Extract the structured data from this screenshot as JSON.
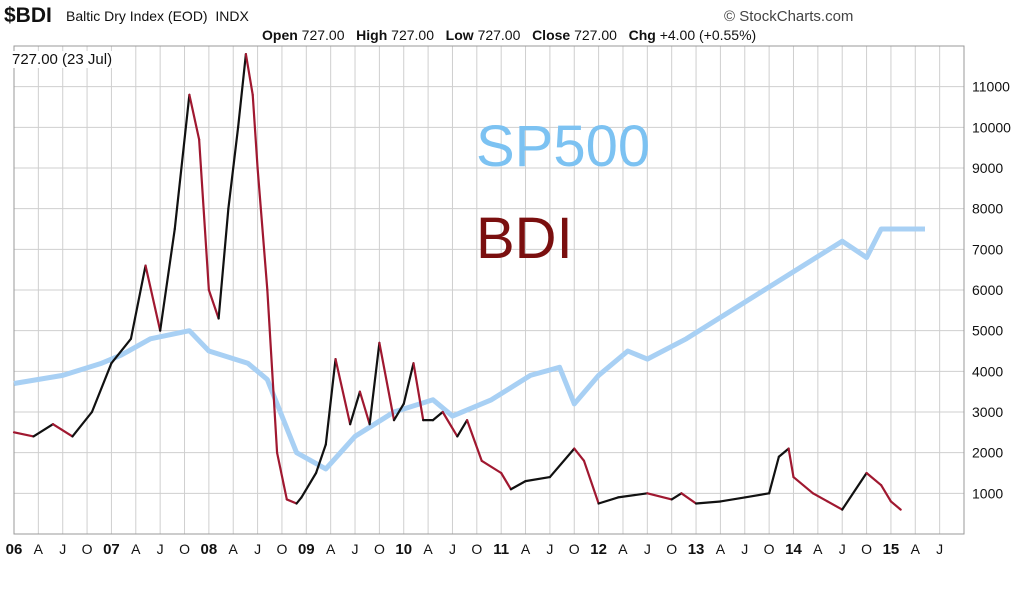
{
  "header": {
    "symbol": "$BDI",
    "name": "Baltic Dry Index (EOD)",
    "exchange": "INDX",
    "brand": "© StockCharts.com",
    "open_label": "Open",
    "open": "727.00",
    "high_label": "High",
    "high": "727.00",
    "low_label": "Low",
    "low": "727.00",
    "close_label": "Close",
    "close": "727.00",
    "chg_label": "Chg",
    "chg": "+4.00 (+0.55%)"
  },
  "last_value": "727.00 (23 Jul)",
  "annotations": {
    "sp500": "SP500",
    "bdi": "BDI"
  },
  "colors": {
    "bdi_up": "#111111",
    "bdi_down": "#a01830",
    "sp500": "#a8d0f4",
    "sp500_text": "#7cc2f2",
    "bdi_text": "#7a0f0f",
    "grid": "#cfcfcf"
  },
  "chart_data": {
    "type": "line",
    "x_tick_labels": [
      "06",
      "A",
      "J",
      "O",
      "07",
      "A",
      "J",
      "O",
      "08",
      "A",
      "J",
      "O",
      "09",
      "A",
      "J",
      "O",
      "10",
      "A",
      "J",
      "O",
      "11",
      "A",
      "J",
      "O",
      "12",
      "A",
      "J",
      "O",
      "13",
      "A",
      "J",
      "O",
      "14",
      "A",
      "J",
      "O",
      "15",
      "A",
      "J"
    ],
    "ylim": [
      0,
      12000
    ],
    "y_ticks": [
      1000,
      2000,
      3000,
      4000,
      5000,
      6000,
      7000,
      8000,
      9000,
      10000,
      11000
    ],
    "grid": true,
    "series": [
      {
        "name": "BDI",
        "x": [
          2006.0,
          2006.2,
          2006.4,
          2006.6,
          2006.8,
          2007.0,
          2007.2,
          2007.35,
          2007.5,
          2007.65,
          2007.8,
          2007.9,
          2008.0,
          2008.1,
          2008.2,
          2008.3,
          2008.38,
          2008.45,
          2008.5,
          2008.6,
          2008.7,
          2008.8,
          2008.9,
          2008.95,
          2009.1,
          2009.2,
          2009.3,
          2009.45,
          2009.55,
          2009.65,
          2009.75,
          2009.9,
          2010.0,
          2010.1,
          2010.2,
          2010.3,
          2010.4,
          2010.55,
          2010.65,
          2010.8,
          2011.0,
          2011.1,
          2011.25,
          2011.5,
          2011.75,
          2011.85,
          2012.0,
          2012.2,
          2012.5,
          2012.75,
          2012.85,
          2013.0,
          2013.25,
          2013.5,
          2013.75,
          2013.85,
          2013.95,
          2014.0,
          2014.2,
          2014.35,
          2014.5,
          2014.75,
          2014.9,
          2015.0,
          2015.1
        ],
        "values": [
          2500,
          2400,
          2700,
          2400,
          3000,
          4200,
          4800,
          6600,
          5000,
          7500,
          10800,
          9700,
          6000,
          5300,
          8000,
          10000,
          11800,
          10800,
          9000,
          6000,
          2000,
          850,
          750,
          900,
          1500,
          2200,
          4300,
          2700,
          3500,
          2700,
          4700,
          2800,
          3200,
          4200,
          2800,
          2800,
          3000,
          2400,
          2800,
          1800,
          1500,
          1100,
          1300,
          1400,
          2100,
          1800,
          750,
          900,
          1000,
          850,
          1000,
          750,
          800,
          900,
          1000,
          1900,
          2100,
          1400,
          1000,
          800,
          600,
          1500,
          1200,
          800,
          600
        ]
      },
      {
        "name": "SP500",
        "x": [
          2006.0,
          2006.5,
          2006.9,
          2007.1,
          2007.4,
          2007.8,
          2008.0,
          2008.4,
          2008.6,
          2008.9,
          2009.2,
          2009.5,
          2009.9,
          2010.3,
          2010.5,
          2010.9,
          2011.3,
          2011.6,
          2011.75,
          2012.0,
          2012.3,
          2012.5,
          2012.9,
          2013.3,
          2013.7,
          2014.1,
          2014.5,
          2014.75,
          2014.9,
          2015.2,
          2015.35
        ],
        "values": [
          3700,
          3900,
          4200,
          4400,
          4800,
          5000,
          4500,
          4200,
          3800,
          2000,
          1600,
          2400,
          3000,
          3300,
          2900,
          3300,
          3900,
          4100,
          3200,
          3900,
          4500,
          4300,
          4800,
          5400,
          6000,
          6600,
          7200,
          6800,
          7500,
          7500,
          7500
        ]
      }
    ]
  }
}
